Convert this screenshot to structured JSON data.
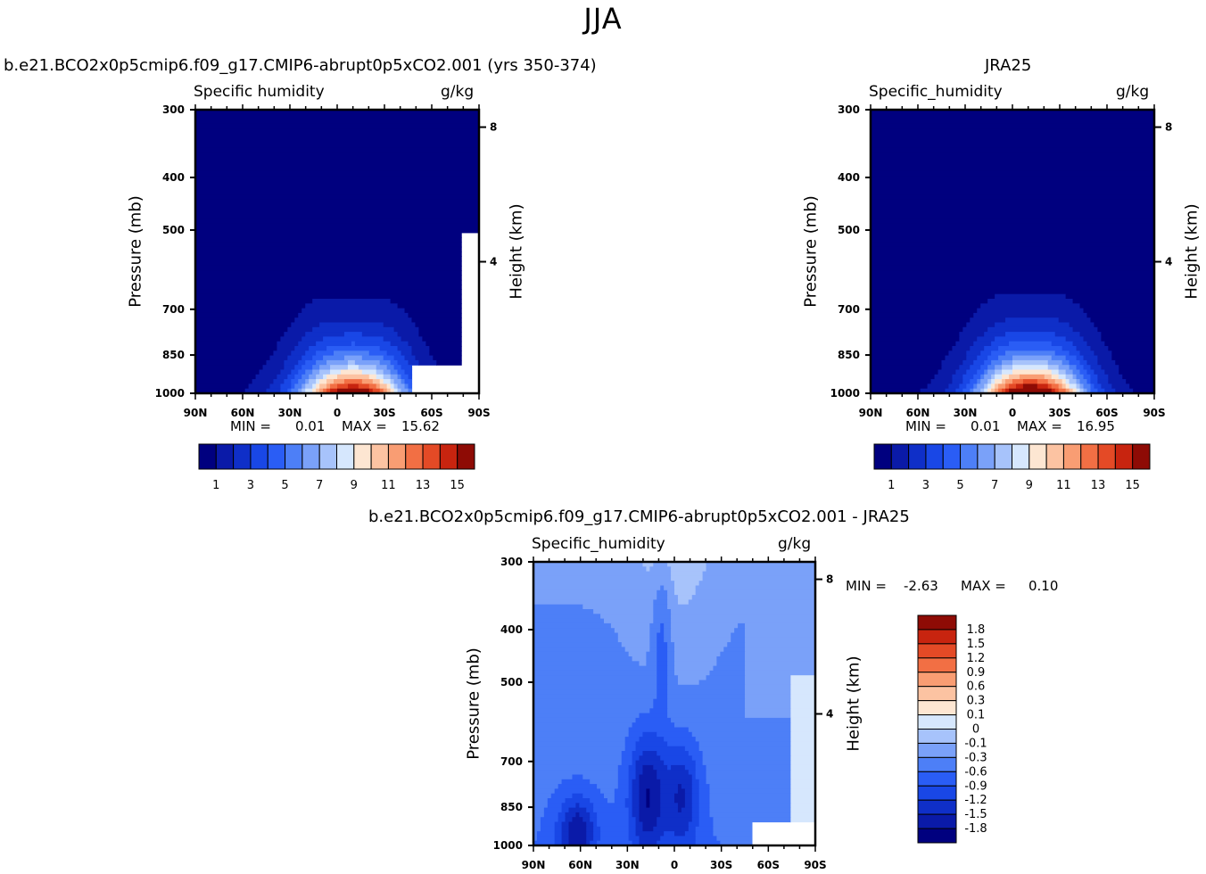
{
  "title": "JJA",
  "colors": {
    "abs_scale": [
      "#00007f",
      "#0a1aa8",
      "#0f2fc8",
      "#1947e6",
      "#2a5df5",
      "#4d7ff7",
      "#7aa1f9",
      "#a7c3fb",
      "#d6e7fd",
      "#fde6d2",
      "#fcc3a2",
      "#f99d73",
      "#f26f44",
      "#e44a26",
      "#c8240f",
      "#8e0b05"
    ],
    "diff_scale": [
      "#00007f",
      "#0a1aa8",
      "#0f2fc8",
      "#1947e6",
      "#2a5df5",
      "#4d7ff7",
      "#7aa1f9",
      "#a7c3fb",
      "#d6e7fd",
      "#fde6d2",
      "#fcc3a2",
      "#f99d73",
      "#f26f44",
      "#e44a26",
      "#c8240f",
      "#8e0b05"
    ]
  },
  "chart_data": [
    {
      "type": "heatmap",
      "title": "b.e21.BCO2x0p5cmip6.f09_g17.CMIP6-abrupt0p5xCO2.001 (yrs 350-374)",
      "subtitle_left": "Specific humidity",
      "subtitle_right": "g/kg",
      "ylabel": "Pressure (mb)",
      "ylabel_right": "Height (km)",
      "x_ticks": [
        "90N",
        "60N",
        "30N",
        "0",
        "30S",
        "60S",
        "90S"
      ],
      "y_ticks": [
        "300",
        "400",
        "500",
        "700",
        "850",
        "1000"
      ],
      "y_ticks_right": [
        "8",
        "4"
      ],
      "min_label": "MIN =",
      "min_value": "0.01",
      "max_label": "MAX =",
      "max_value": "15.62",
      "colorbar_labels": [
        "1",
        "3",
        "5",
        "7",
        "9",
        "11",
        "13",
        "15"
      ],
      "peak_latitude": -10
    },
    {
      "type": "heatmap",
      "title": "JRA25",
      "subtitle_left": "Specific_humidity",
      "subtitle_right": "g/kg",
      "ylabel": "Pressure (mb)",
      "ylabel_right": "Height (km)",
      "x_ticks": [
        "90N",
        "60N",
        "30N",
        "0",
        "30S",
        "60S",
        "90S"
      ],
      "y_ticks": [
        "300",
        "400",
        "500",
        "700",
        "850",
        "1000"
      ],
      "y_ticks_right": [
        "8",
        "4"
      ],
      "min_label": "MIN =",
      "min_value": "0.01",
      "max_label": "MAX =",
      "max_value": "16.95",
      "colorbar_labels": [
        "1",
        "3",
        "5",
        "7",
        "9",
        "11",
        "13",
        "15"
      ],
      "peak_latitude": -12
    },
    {
      "type": "heatmap",
      "title": "b.e21.BCO2x0p5cmip6.f09_g17.CMIP6-abrupt0p5xCO2.001 - JRA25",
      "subtitle_left": "Specific_humidity",
      "subtitle_right": "g/kg",
      "ylabel": "Pressure (mb)",
      "ylabel_right": "Height (km)",
      "x_ticks": [
        "90N",
        "60N",
        "30N",
        "0",
        "30S",
        "60S",
        "90S"
      ],
      "y_ticks": [
        "300",
        "400",
        "500",
        "700",
        "850",
        "1000"
      ],
      "y_ticks_right": [
        "8",
        "4"
      ],
      "min_label": "MIN =",
      "min_value": "-2.63",
      "max_label": "MAX =",
      "max_value": "0.10",
      "colorbar_labels": [
        "1.8",
        "1.5",
        "1.2",
        "0.9",
        "0.6",
        "0.3",
        "0.1",
        "0",
        "-0.1",
        "-0.3",
        "-0.6",
        "-0.9",
        "-1.2",
        "-1.5",
        "-1.8"
      ]
    }
  ]
}
